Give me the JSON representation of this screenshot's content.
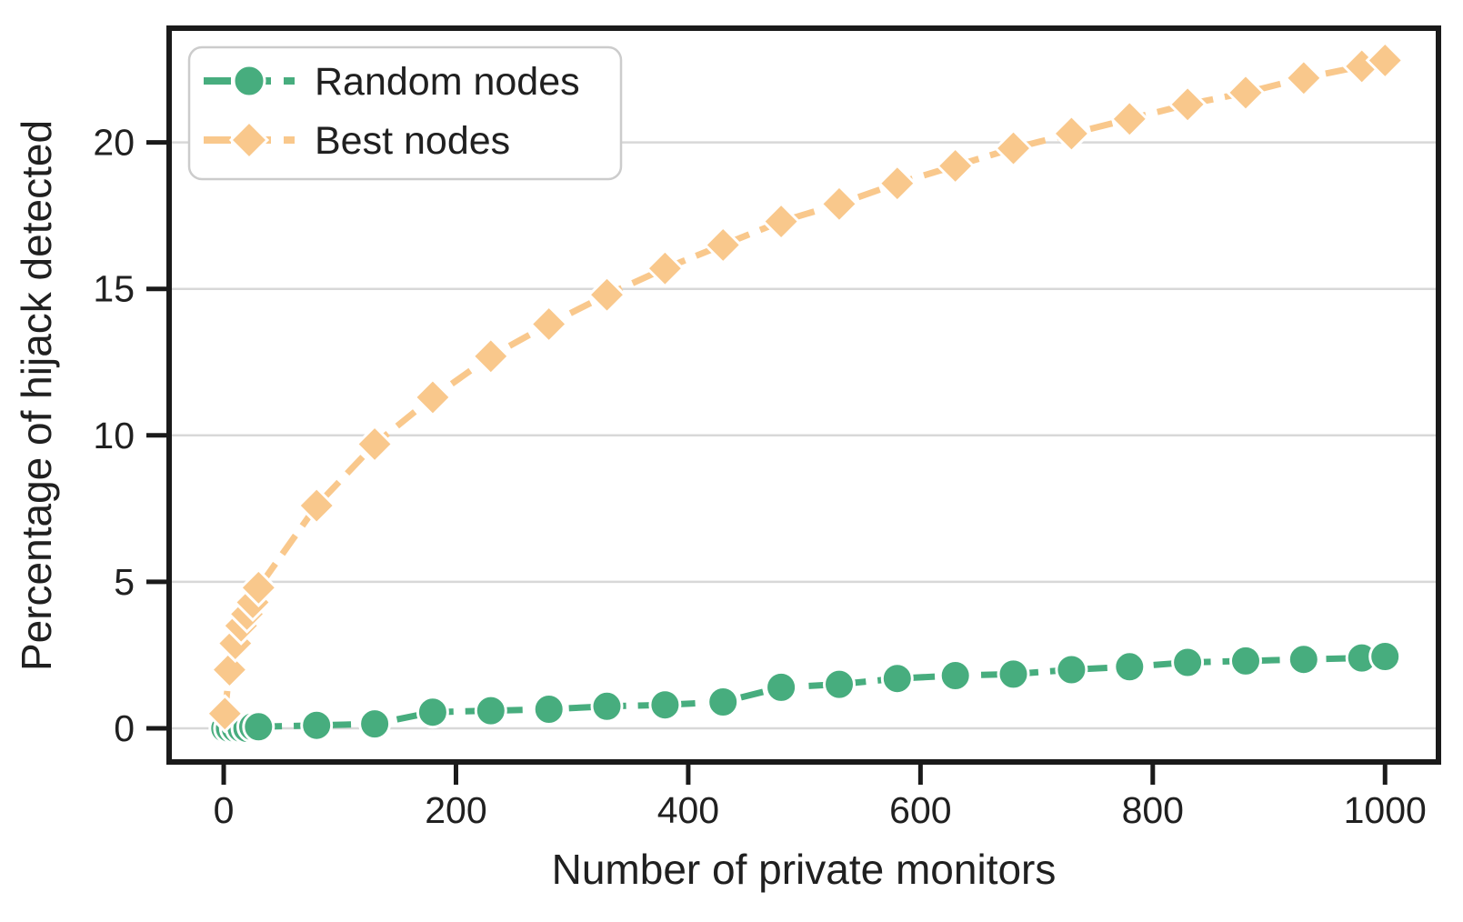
{
  "chart_data": {
    "type": "line",
    "title": "",
    "xlabel": "Number of private monitors",
    "ylabel": "Percentage of hijack detected",
    "x": [
      1,
      5,
      10,
      15,
      20,
      25,
      30,
      80,
      130,
      180,
      230,
      280,
      330,
      380,
      430,
      480,
      530,
      580,
      630,
      680,
      730,
      780,
      830,
      880,
      930,
      980,
      1000
    ],
    "series": [
      {
        "name": "Random nodes",
        "marker": "circle",
        "color": "#47ad7e",
        "values": [
          0.0,
          0.0,
          0.0,
          0.0,
          0.0,
          0.05,
          0.05,
          0.1,
          0.15,
          0.55,
          0.6,
          0.65,
          0.75,
          0.8,
          0.9,
          1.4,
          1.5,
          1.7,
          1.8,
          1.85,
          2.0,
          2.1,
          2.25,
          2.3,
          2.35,
          2.4,
          2.45
        ]
      },
      {
        "name": "Best nodes",
        "marker": "diamond",
        "color": "#f9c88c",
        "values": [
          0.5,
          2.0,
          2.9,
          3.5,
          3.9,
          4.3,
          4.8,
          7.6,
          9.7,
          11.3,
          12.7,
          13.8,
          14.8,
          15.7,
          16.5,
          17.3,
          17.9,
          18.6,
          19.2,
          19.8,
          20.3,
          20.8,
          21.3,
          21.7,
          22.2,
          22.6,
          22.8
        ]
      }
    ],
    "xticks": [
      0,
      200,
      400,
      600,
      800,
      1000
    ],
    "yticks": [
      0,
      5,
      10,
      15,
      20
    ],
    "xlim": [
      -47,
      1046
    ],
    "ylim": [
      -1.15,
      23.9
    ],
    "grid": "horizontal",
    "line_style": "dashed",
    "legend_position": "upper-left"
  },
  "colors": {
    "grid": "#d8d8d8",
    "spine": "#1a1a1a",
    "text": "#202020",
    "legend_border": "#cccccc",
    "background": "#ffffff"
  }
}
